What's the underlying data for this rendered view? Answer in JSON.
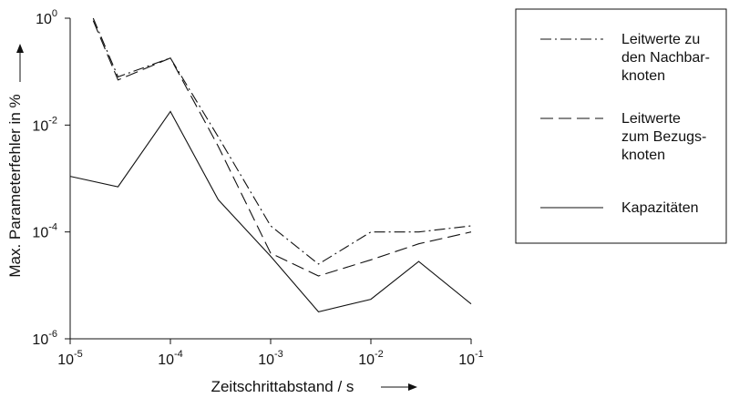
{
  "chart_data": {
    "type": "line",
    "xlabel": "Zeitschrittabstand / s",
    "ylabel": "Max. Parameterfehler in %",
    "xscale": "log",
    "yscale": "log",
    "xlim": [
      1e-05,
      0.1
    ],
    "ylim": [
      1e-06,
      1
    ],
    "x_ticks": [
      {
        "base": "10",
        "exp": "-5",
        "value": 1e-05
      },
      {
        "base": "10",
        "exp": "-4",
        "value": 0.0001
      },
      {
        "base": "10",
        "exp": "-3",
        "value": 0.001
      },
      {
        "base": "10",
        "exp": "-2",
        "value": 0.01
      },
      {
        "base": "10",
        "exp": "-1",
        "value": 0.1
      }
    ],
    "y_ticks": [
      {
        "base": "10",
        "exp": "0",
        "value": 1
      },
      {
        "base": "10",
        "exp": "-2",
        "value": 0.01
      },
      {
        "base": "10",
        "exp": "-4",
        "value": 0.0001
      },
      {
        "base": "10",
        "exp": "-6",
        "value": 1e-06
      }
    ],
    "grid": false,
    "legend_position": "top-right outside",
    "series": [
      {
        "name": "Leitwerte zu den Nachbar-knoten",
        "legend_lines": [
          "Leitwerte zu",
          "den Nachbar-",
          "knoten"
        ],
        "style": "dash-dot",
        "x": [
          1.7e-05,
          3e-05,
          0.0001,
          0.0003,
          0.001,
          0.003,
          0.01,
          0.03,
          0.1
        ],
        "y": [
          1.0,
          0.08,
          0.18,
          0.006,
          0.00013,
          2.5e-05,
          0.0001,
          0.0001,
          0.00013
        ]
      },
      {
        "name": "Leitwerte zum Bezugs-knoten",
        "legend_lines": [
          "Leitwerte",
          "zum Bezugs-",
          "knoten"
        ],
        "style": "dashed",
        "x": [
          1.7e-05,
          3e-05,
          0.0001,
          0.0003,
          0.001,
          0.003,
          0.01,
          0.03,
          0.1
        ],
        "y": [
          0.9,
          0.07,
          0.18,
          0.004,
          4e-05,
          1.5e-05,
          3e-05,
          6e-05,
          0.0001
        ]
      },
      {
        "name": "Kapazitäten",
        "legend_lines": [
          "Kapazitäten"
        ],
        "style": "solid",
        "x": [
          1e-05,
          3e-05,
          0.0001,
          0.0003,
          0.001,
          0.003,
          0.01,
          0.03,
          0.1
        ],
        "y": [
          0.0011,
          0.0007,
          0.018,
          0.0004,
          3.5e-05,
          3.2e-06,
          5.5e-06,
          2.8e-05,
          4.5e-06
        ]
      }
    ]
  }
}
